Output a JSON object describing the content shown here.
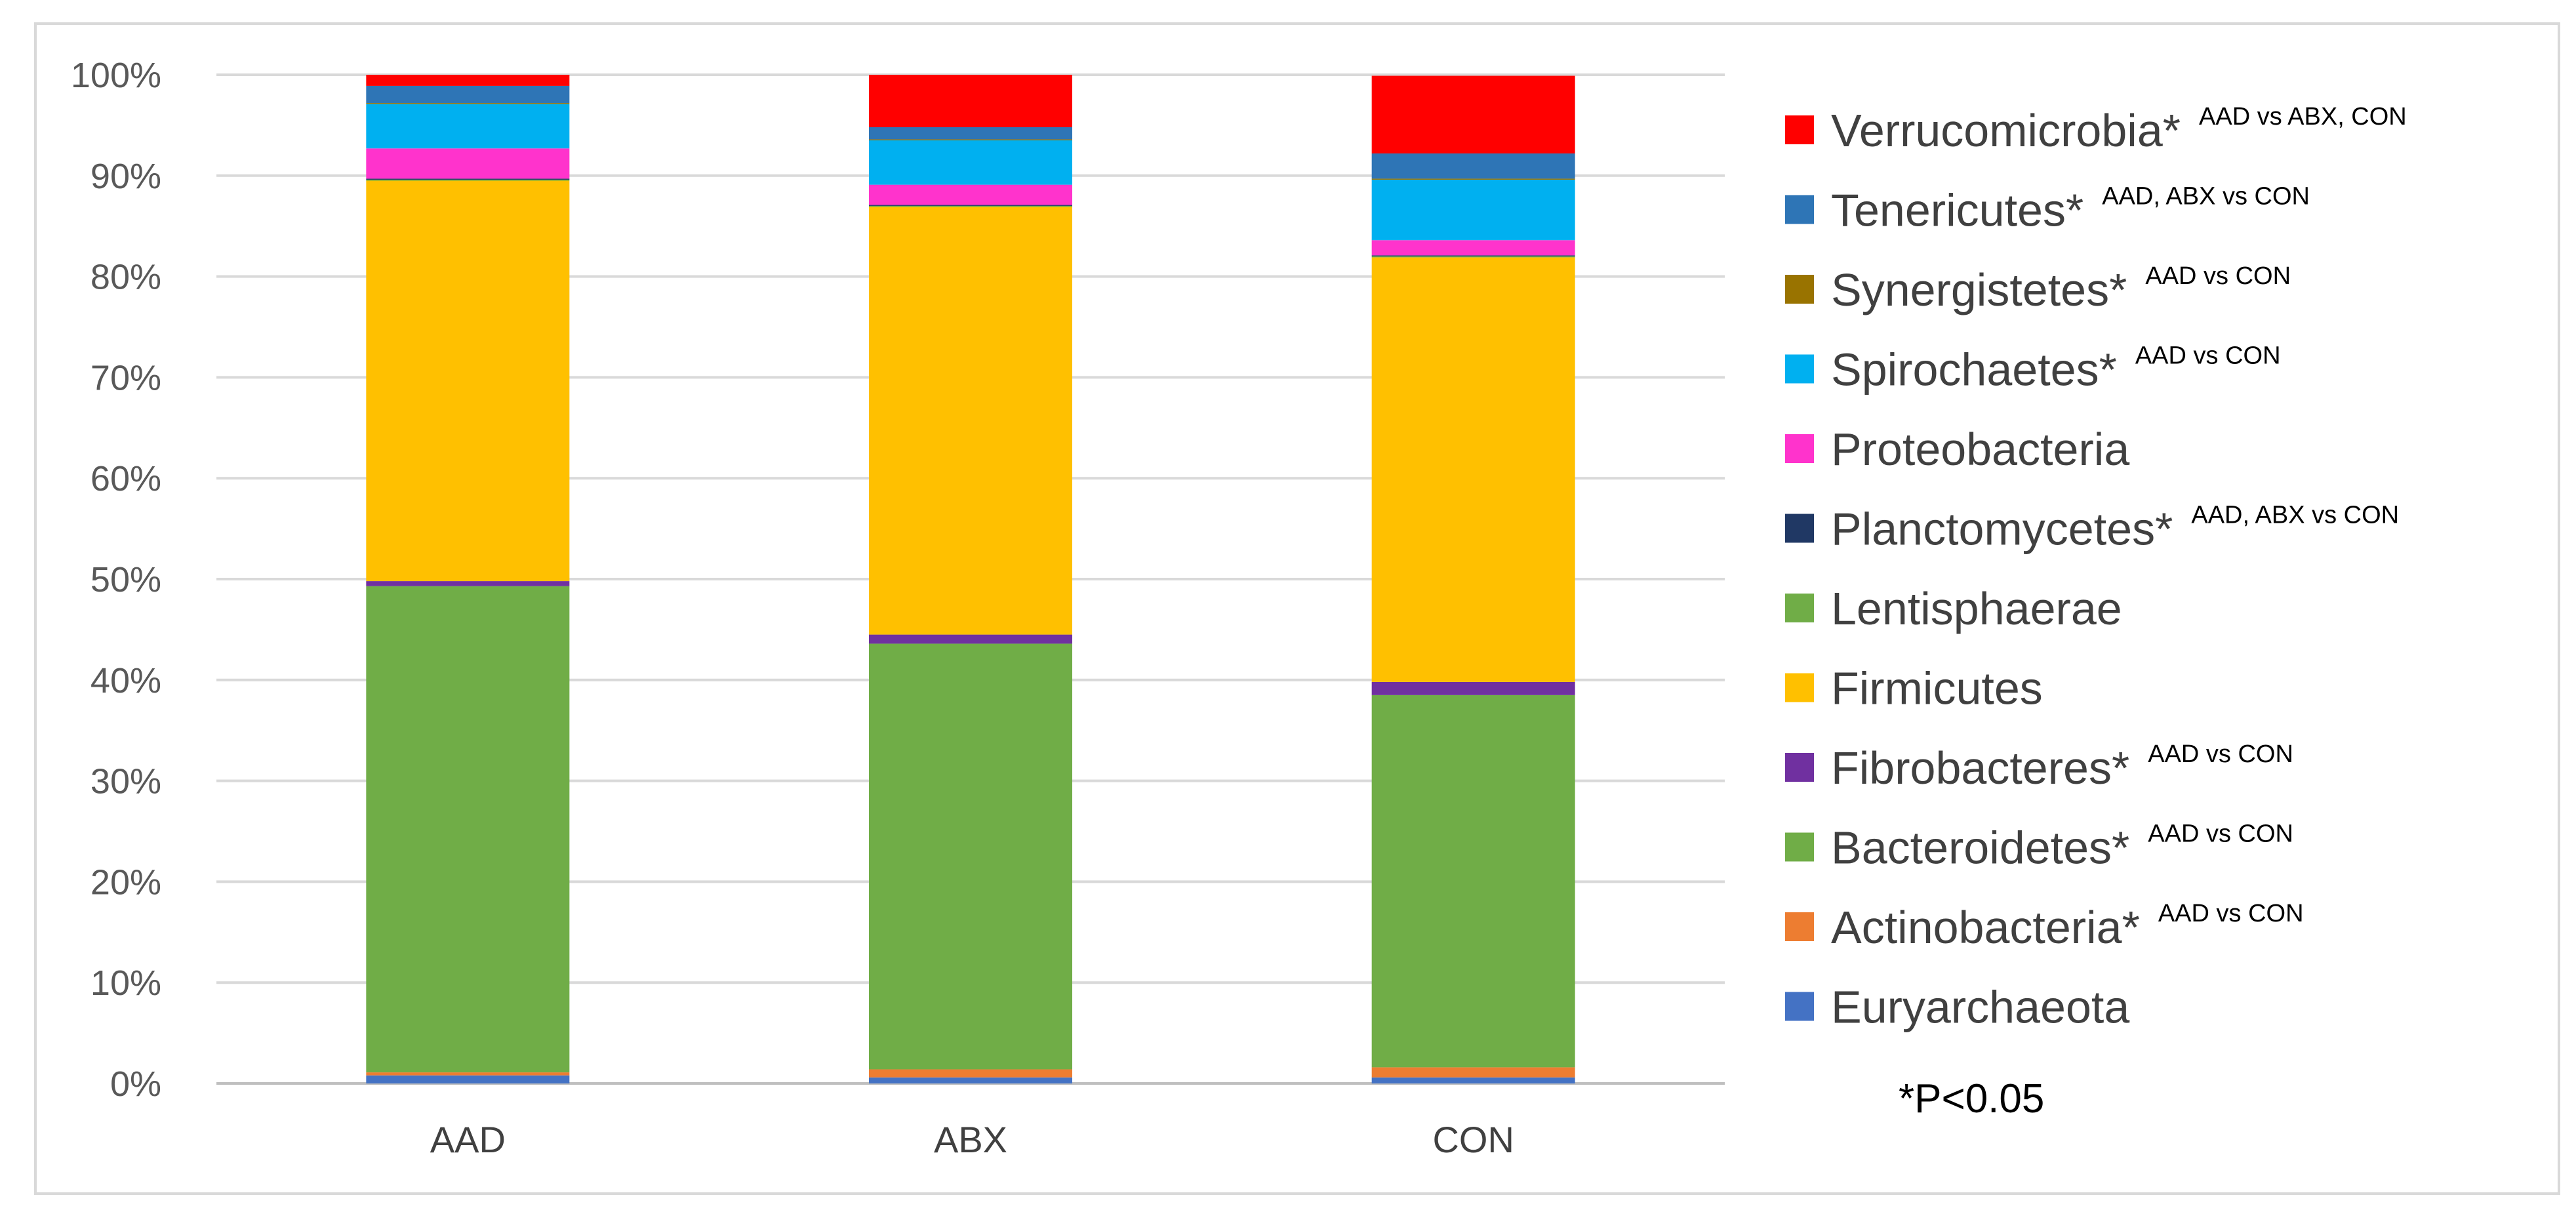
{
  "chart_data": {
    "type": "bar",
    "stacked": true,
    "normalized": true,
    "categories": [
      "AAD",
      "ABX",
      "CON"
    ],
    "y_ticks": [
      "0%",
      "10%",
      "20%",
      "30%",
      "40%",
      "50%",
      "60%",
      "70%",
      "80%",
      "90%",
      "100%"
    ],
    "ylim": [
      0,
      100
    ],
    "grid": true,
    "legend_position": "right",
    "series": [
      {
        "name": "Euryarchaeota",
        "marker": "",
        "note": "",
        "color": "#4472C4",
        "values": [
          0.8,
          0.6,
          0.6
        ]
      },
      {
        "name": "Actinobacteria",
        "marker": "*",
        "note": "AAD vs CON",
        "color": "#ED7D31",
        "values": [
          0.3,
          0.8,
          1.0
        ]
      },
      {
        "name": "Bacteroidetes",
        "marker": "*",
        "note": "AAD vs CON",
        "color": "#70AD47",
        "values": [
          48.2,
          42.2,
          36.9
        ]
      },
      {
        "name": "Fibrobacteres",
        "marker": "*",
        "note": "AAD vs CON",
        "color": "#7030A0",
        "values": [
          0.5,
          0.9,
          1.3
        ]
      },
      {
        "name": "Firmicutes",
        "marker": "",
        "note": "",
        "color": "#FFC000",
        "values": [
          39.7,
          42.4,
          42.1
        ]
      },
      {
        "name": "Lentisphaerae",
        "marker": "",
        "note": "",
        "color": "#70AD47",
        "values": [
          0.1,
          0.1,
          0.1
        ]
      },
      {
        "name": "Planctomycetes",
        "marker": "*",
        "note": "AAD, ABX vs CON",
        "color": "#203864",
        "values": [
          0.1,
          0.1,
          0.1
        ]
      },
      {
        "name": "Proteobacteria",
        "marker": "",
        "note": "",
        "color": "#FF33CC",
        "values": [
          3.0,
          2.0,
          1.5
        ]
      },
      {
        "name": "Spirochaetes",
        "marker": "*",
        "note": "AAD vs CON",
        "color": "#00B0F0",
        "values": [
          4.4,
          4.4,
          6.0
        ]
      },
      {
        "name": "Synergistetes",
        "marker": "*",
        "note": "AAD vs CON",
        "color": "#997300",
        "values": [
          0.1,
          0.1,
          0.1
        ]
      },
      {
        "name": "Tenericutes",
        "marker": "*",
        "note": "AAD, ABX vs CON",
        "color": "#2E75B6",
        "values": [
          1.7,
          1.2,
          2.5
        ]
      },
      {
        "name": "Verrucomicrobia",
        "marker": "*",
        "note": "AAD vs ABX, CON",
        "color": "#FF0000",
        "values": [
          1.1,
          5.2,
          7.7
        ]
      }
    ],
    "footnote": "*P<0.05"
  }
}
